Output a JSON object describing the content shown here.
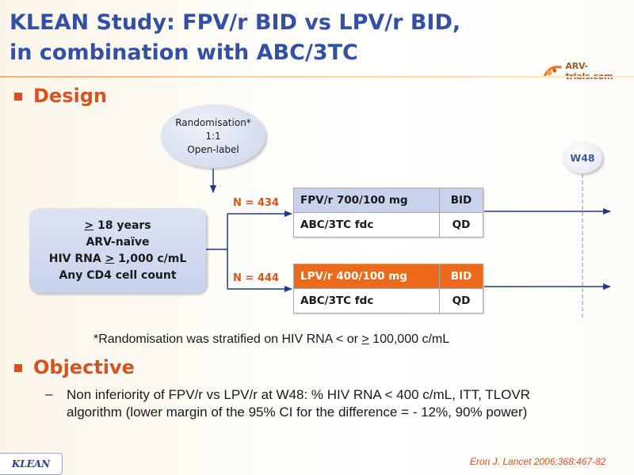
{
  "title": {
    "line1": "KLEAN Study: FPV/r BID vs LPV/r BID,",
    "line2": "in combination with ABC/3TC"
  },
  "logo": {
    "text": "ARV-trials.com"
  },
  "sections": {
    "design": "Design",
    "objective": "Objective"
  },
  "randomisation": {
    "line1": "Randomisation*",
    "line2": "1:1",
    "line3": "Open-label"
  },
  "eligibility": {
    "age_sign": ">",
    "age_text": " 18 years",
    "line2": "ARV-naïve",
    "hiv_prefix": "HIV RNA ",
    "hiv_sign": ">",
    "hiv_suffix": " 1,000 c/mL",
    "line4": "Any CD4 cell count"
  },
  "arms": [
    {
      "n_label": "N = 434",
      "drug": "FPV/r 700/100 mg",
      "freq": "BID",
      "backbone": "ABC/3TC fdc",
      "backbone_freq": "QD"
    },
    {
      "n_label": "N = 444",
      "drug": "LPV/r 400/100 mg",
      "freq": "BID",
      "backbone": "ABC/3TC fdc",
      "backbone_freq": "QD"
    }
  ],
  "timepoint": "W48",
  "footnote": {
    "before": "*Randomisation was stratified on HIV RNA < or ",
    "sign": ">",
    "after": " 100,000 c/mL"
  },
  "objective": {
    "dash": "–",
    "text": "Non inferiority of FPV/r vs LPV/r at W48: % HIV RNA < 400 c/mL, ITT, TLOVR algorithm (lower margin of the 95% CI for the difference = - 12%, 90% power)"
  },
  "study_tag": "KLEAN",
  "reference": "Eron J. Lancet 2006;368:467-82",
  "colors": {
    "title": "#3350a5",
    "accent_orange": "#d6531f",
    "fpv_header": "#c8d2ec",
    "lpv_header": "#ee6a1b",
    "arrow": "#1f3a8a"
  }
}
